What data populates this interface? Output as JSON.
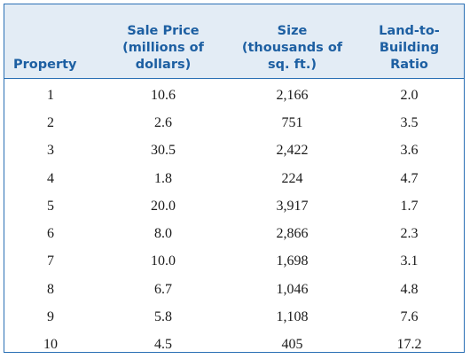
{
  "table": {
    "headers": [
      {
        "lines": [
          "Property"
        ]
      },
      {
        "lines": [
          "Sale Price",
          "(millions of",
          "dollars)"
        ]
      },
      {
        "lines": [
          "Size",
          "(thousands of",
          "sq. ft.)"
        ]
      },
      {
        "lines": [
          "Land-to-",
          "Building",
          "Ratio"
        ]
      }
    ],
    "rows": [
      [
        "1",
        "10.6",
        "2,166",
        "2.0"
      ],
      [
        "2",
        "2.6",
        "751",
        "3.5"
      ],
      [
        "3",
        "30.5",
        "2,422",
        "3.6"
      ],
      [
        "4",
        "1.8",
        "224",
        "4.7"
      ],
      [
        "5",
        "20.0",
        "3,917",
        "1.7"
      ],
      [
        "6",
        "8.0",
        "2,866",
        "2.3"
      ],
      [
        "7",
        "10.0",
        "1,698",
        "3.1"
      ],
      [
        "8",
        "6.7",
        "1,046",
        "4.8"
      ],
      [
        "9",
        "5.8",
        "1,108",
        "7.6"
      ],
      [
        "10",
        "4.5",
        "405",
        "17.2"
      ]
    ]
  }
}
